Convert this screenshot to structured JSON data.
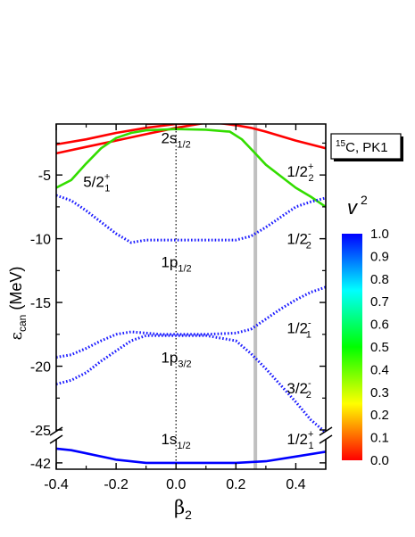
{
  "chart_data": {
    "type": "line",
    "title": "",
    "xlabel": {
      "main": "β",
      "sub": "2"
    },
    "ylabel": {
      "main": "ε",
      "sub": "can",
      "rest": " (MeV)"
    },
    "xlim": [
      -0.4,
      0.5
    ],
    "x_ticks": [
      "-0.4",
      "-0.2",
      "0.0",
      "0.2",
      "0.4"
    ],
    "y_ticks_upper": [
      "-5",
      "-10",
      "-15",
      "-20",
      "-25"
    ],
    "y_ticks_lower": [
      "-42"
    ],
    "ylim_upper": [
      -25,
      -1
    ],
    "ylim_lower": [
      -42.2,
      -41.3
    ],
    "legend_box": {
      "sup": "15",
      "main": "C, PK1"
    },
    "colorbar": {
      "label": "v",
      "label_sup": "2",
      "ticks": [
        "1.0",
        "0.9",
        "0.8",
        "0.7",
        "0.6",
        "0.5",
        "0.4",
        "0.3",
        "0.2",
        "0.1",
        "0.0"
      ],
      "colors": [
        "#0000ff",
        "#00ffff",
        "#00ff00",
        "#ffff00",
        "#ff0000"
      ]
    },
    "vertical_lines": [
      {
        "x": 0.0,
        "style": "dotted",
        "color": "#000000"
      },
      {
        "x": 0.265,
        "style": "solid",
        "color": "#c0c0c0"
      }
    ],
    "series": [
      {
        "color": "#ff0000",
        "v2": 0.0,
        "style": "solid",
        "x": [
          -0.4,
          -0.3,
          -0.2,
          -0.1,
          0.0,
          0.1,
          0.2,
          0.3,
          0.4,
          0.5
        ],
        "y": [
          -2.6,
          -2.2,
          -1.7,
          -1.3,
          -1.0,
          -0.9,
          -0.9,
          -0.8,
          -0.7,
          -0.6
        ]
      },
      {
        "color": "#ff0000",
        "v2": 0.0,
        "style": "solid",
        "x": [
          -0.4,
          -0.3,
          -0.2,
          -0.1,
          0.0,
          0.1,
          0.2,
          0.3,
          0.36
        ],
        "y": [
          -3.3,
          -2.8,
          -2.3,
          -1.8,
          -1.3,
          -0.9,
          -0.6,
          -0.3,
          -0.1
        ]
      },
      {
        "color": "#ff0000",
        "v2": 0.0,
        "style": "solid",
        "x": [
          -0.15,
          -0.1,
          0.0,
          0.1,
          0.2,
          0.25,
          0.3,
          0.4,
          0.5
        ],
        "y": [
          -0.6,
          -0.6,
          -0.6,
          -0.8,
          -1.1,
          -1.3,
          -1.6,
          -2.3,
          -2.9
        ]
      },
      {
        "color": "#ff0000",
        "v2": 0.0,
        "style": "solid",
        "x": [
          -0.1,
          0.0,
          0.1,
          0.2,
          0.3,
          0.4
        ],
        "y": [
          -1.0,
          -0.9,
          -0.8,
          -0.8,
          -0.5,
          -0.2
        ]
      },
      {
        "color": "#33dd00",
        "v2": 0.5,
        "style": "solid",
        "x": [
          -0.4,
          -0.35,
          -0.3,
          -0.25,
          -0.2,
          -0.15,
          -0.1,
          0.0,
          0.1,
          0.18,
          0.22,
          0.26,
          0.3,
          0.35,
          0.4,
          0.45,
          0.5
        ],
        "y": [
          -6.0,
          -5.4,
          -4.1,
          -2.9,
          -2.1,
          -1.7,
          -1.5,
          -1.4,
          -1.45,
          -1.6,
          -2.2,
          -3.2,
          -4.2,
          -5.1,
          -6.0,
          -6.7,
          -7.5
        ]
      },
      {
        "color": "#1a1aff",
        "v2": 0.95,
        "style": "dotted",
        "x": [
          -0.4,
          -0.35,
          -0.3,
          -0.25,
          -0.2,
          -0.15,
          -0.1,
          0.0,
          0.1,
          0.2,
          0.25,
          0.3,
          0.35,
          0.4,
          0.45,
          0.5
        ],
        "y": [
          -6.6,
          -7.0,
          -7.8,
          -8.7,
          -9.6,
          -10.3,
          -10.1,
          -10.1,
          -10.1,
          -10.1,
          -9.8,
          -9.1,
          -8.3,
          -7.5,
          -7.1,
          -6.8
        ]
      },
      {
        "color": "#1a1aff",
        "v2": 0.95,
        "style": "dotted",
        "x": [
          -0.4,
          -0.35,
          -0.3,
          -0.25,
          -0.2,
          -0.15,
          -0.1,
          -0.05,
          0.0,
          0.1,
          0.2,
          0.25,
          0.3,
          0.35,
          0.4,
          0.45,
          0.5
        ],
        "y": [
          -19.3,
          -19.1,
          -18.6,
          -18.0,
          -17.5,
          -17.3,
          -17.4,
          -17.5,
          -17.5,
          -17.5,
          -17.4,
          -17.1,
          -16.3,
          -15.5,
          -14.8,
          -14.2,
          -13.8
        ]
      },
      {
        "color": "#1a1aff",
        "v2": 0.95,
        "style": "dotted",
        "x": [
          -0.4,
          -0.35,
          -0.3,
          -0.25,
          -0.2,
          -0.15,
          -0.1,
          -0.05,
          0.0,
          0.1,
          0.2,
          0.25,
          0.3,
          0.35,
          0.4,
          0.45,
          0.5
        ],
        "y": [
          -21.4,
          -21.1,
          -20.5,
          -19.6,
          -18.8,
          -18.0,
          -17.6,
          -17.6,
          -17.6,
          -17.6,
          -18.0,
          -19.0,
          -20.2,
          -21.5,
          -22.8,
          -24.2,
          -25.2
        ]
      },
      {
        "color": "#0000ff",
        "v2": 1.0,
        "style": "solid",
        "axis": "lower",
        "x": [
          -0.4,
          -0.35,
          -0.3,
          -0.2,
          -0.1,
          -0.05,
          0.0,
          0.1,
          0.2,
          0.3,
          0.4,
          0.5
        ],
        "y": [
          -41.55,
          -41.6,
          -41.7,
          -41.9,
          -42.0,
          -42.0,
          -42.0,
          -42.0,
          -42.0,
          -41.95,
          -41.8,
          -41.65
        ]
      }
    ],
    "annotations": [
      {
        "main": "2s",
        "sub": "1/2",
        "x": -0.05,
        "y": -2.1
      },
      {
        "main": "5/2",
        "sup": "+",
        "sub": "1",
        "x": -0.31,
        "y": -5.5
      },
      {
        "main": "1/2",
        "sup": "+",
        "sub": "2",
        "x": 0.37,
        "y": -4.7
      },
      {
        "main": "1/2",
        "sup": "-",
        "sub": "2",
        "x": 0.37,
        "y": -10.0
      },
      {
        "main": "1p",
        "sub": "1/2",
        "x": -0.05,
        "y": -11.8
      },
      {
        "main": "1/2",
        "sup": "-",
        "sub": "1",
        "x": 0.37,
        "y": -17.0
      },
      {
        "main": "1p",
        "sub": "3/2",
        "x": -0.05,
        "y": -19.3
      },
      {
        "main": "3/2",
        "sup": "-",
        "sub": "2",
        "x": 0.37,
        "y": -21.7
      },
      {
        "main": "1s",
        "sub": "1/2",
        "x": -0.05,
        "y": -26.4
      },
      {
        "main": "1/2",
        "sup": "+",
        "sub": "1",
        "x": 0.37,
        "y": -26.4
      }
    ]
  }
}
